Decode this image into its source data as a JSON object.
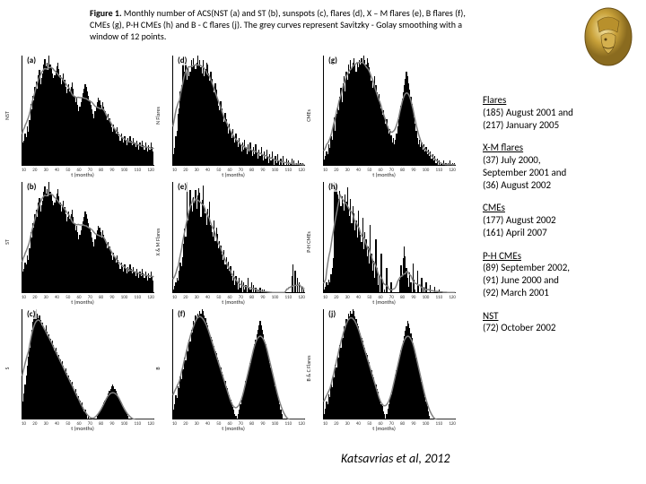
{
  "caption": {
    "prefix": "Figure 1.",
    "text": " Monthly number of ACS(NST (a) and ST (b), sunspots (c), flares (d), X – M flares (e), B flares (f), CMEs (g), P-H CMEs (h) and B - C flares (j). The grey curves represent Savitzky - Golay smoothing with a window of 12 points."
  },
  "citation": "Katsavrias et al, 2012",
  "chart_style": {
    "bar_color": "#000000",
    "smooth_color": "#808080",
    "smooth_width": 1.5,
    "background": "#ffffff",
    "axis_color": "#000000",
    "xlabel_default": "t (months)",
    "x_ticks": [
      "10",
      "20",
      "30",
      "40",
      "50",
      "60",
      "70",
      "80",
      "90",
      "100",
      "110",
      "120"
    ]
  },
  "panels": [
    {
      "label": "(a)",
      "ylabel": "NST",
      "values": [
        20,
        22,
        28,
        25,
        35,
        30,
        40,
        55,
        50,
        62,
        58,
        70,
        75,
        68,
        80,
        85,
        72,
        78,
        82,
        90,
        95,
        88,
        92,
        85,
        98,
        90,
        87,
        82,
        78,
        80,
        84,
        88,
        92,
        86,
        80,
        72,
        78,
        82,
        76,
        70,
        64,
        68,
        72,
        66,
        70,
        74,
        68,
        62,
        56,
        60,
        54,
        48,
        52,
        56,
        60,
        64,
        68,
        72,
        70,
        66,
        62,
        58,
        54,
        50,
        46,
        42,
        48,
        52,
        56,
        60,
        58,
        54,
        50,
        56,
        52,
        48,
        44,
        40,
        46,
        42,
        38,
        34,
        30,
        36,
        32,
        28,
        34,
        30,
        26,
        22,
        28,
        24,
        20,
        26,
        22,
        18,
        24,
        20,
        26,
        22,
        18,
        24,
        20,
        16,
        22,
        18,
        14,
        20,
        16,
        22,
        18,
        14,
        20,
        16,
        12,
        18,
        14,
        20,
        16,
        12
      ]
    },
    {
      "label": "(d)",
      "ylabel": "N   Flares",
      "values": [
        10,
        15,
        25,
        30,
        45,
        50,
        65,
        70,
        88,
        95,
        82,
        90,
        75,
        85,
        78,
        82,
        92,
        86,
        94,
        88,
        84,
        90,
        96,
        88,
        92,
        86,
        80,
        92,
        78,
        84,
        90,
        88,
        80,
        74,
        82,
        76,
        70,
        64,
        72,
        66,
        58,
        52,
        48,
        56,
        50,
        44,
        38,
        46,
        40,
        34,
        28,
        36,
        30,
        24,
        32,
        26,
        20,
        28,
        22,
        16,
        24,
        18,
        12,
        20,
        14,
        22,
        16,
        10,
        18,
        12,
        20,
        14,
        8,
        16,
        10,
        18,
        12,
        6,
        14,
        8,
        16,
        10,
        4,
        12,
        6,
        14,
        8,
        2,
        10,
        4,
        12,
        6,
        0,
        8,
        2,
        10,
        4,
        0,
        6,
        0,
        8,
        2,
        0,
        6,
        0,
        4,
        0,
        2,
        6,
        0,
        4,
        0,
        2,
        0,
        4,
        0,
        2,
        0,
        2,
        0
      ]
    },
    {
      "label": "(g)",
      "ylabel": "CMEs",
      "values": [
        5,
        8,
        12,
        10,
        18,
        15,
        25,
        22,
        35,
        42,
        30,
        45,
        52,
        48,
        60,
        68,
        55,
        72,
        78,
        65,
        82,
        75,
        88,
        80,
        92,
        85,
        90,
        94,
        88,
        82,
        90,
        86,
        92,
        88,
        94,
        90,
        96,
        92,
        88,
        94,
        90,
        86,
        80,
        74,
        68,
        72,
        78,
        70,
        64,
        58,
        62,
        56,
        50,
        44,
        48,
        42,
        36,
        40,
        34,
        28,
        32,
        26,
        20,
        24,
        18,
        22,
        28,
        34,
        40,
        46,
        52,
        58,
        64,
        70,
        76,
        82,
        78,
        72,
        66,
        60,
        54,
        48,
        42,
        36,
        30,
        24,
        18,
        22,
        16,
        20,
        14,
        18,
        12,
        16,
        10,
        14,
        8,
        12,
        6,
        10,
        4,
        8,
        2,
        6,
        0,
        4,
        0,
        2,
        0,
        4,
        0,
        2,
        0,
        2,
        0,
        4,
        0,
        2,
        0,
        2
      ]
    },
    {
      "label": "(b)",
      "ylabel": "ST",
      "values": [
        18,
        20,
        26,
        24,
        32,
        28,
        38,
        52,
        48,
        60,
        56,
        68,
        72,
        66,
        78,
        82,
        70,
        76,
        80,
        88,
        92,
        86,
        90,
        84,
        96,
        88,
        85,
        80,
        76,
        78,
        82,
        86,
        90,
        84,
        78,
        70,
        76,
        80,
        74,
        68,
        62,
        66,
        70,
        64,
        68,
        72,
        66,
        60,
        54,
        58,
        52,
        46,
        50,
        54,
        58,
        62,
        66,
        70,
        68,
        64,
        60,
        56,
        52,
        48,
        44,
        40,
        46,
        50,
        54,
        58,
        56,
        52,
        48,
        54,
        50,
        46,
        42,
        38,
        44,
        40,
        36,
        32,
        28,
        34,
        30,
        26,
        32,
        28,
        24,
        20,
        26,
        22,
        18,
        24,
        20,
        16,
        22,
        18,
        24,
        20,
        16,
        22,
        18,
        14,
        20,
        16,
        12,
        18,
        14,
        20,
        16,
        12,
        18,
        14,
        10,
        16,
        12,
        18,
        14,
        10
      ]
    },
    {
      "label": "(e)",
      "ylabel": "X & M Flares",
      "values": [
        2,
        5,
        8,
        12,
        10,
        18,
        25,
        22,
        30,
        42,
        55,
        48,
        95,
        62,
        68,
        88,
        75,
        70,
        82,
        78,
        88,
        72,
        84,
        90,
        86,
        65,
        80,
        92,
        74,
        68,
        58,
        72,
        64,
        78,
        58,
        52,
        48,
        62,
        44,
        56,
        50,
        38,
        44,
        40,
        32,
        28,
        36,
        24,
        30,
        20,
        26,
        18,
        22,
        14,
        10,
        18,
        6,
        14,
        8,
        2,
        12,
        4,
        10,
        0,
        8,
        2,
        6,
        0,
        12,
        4,
        2,
        8,
        0,
        6,
        0,
        4,
        0,
        2,
        0,
        4,
        0,
        2,
        0,
        2,
        0,
        0,
        0,
        0,
        0,
        0,
        0,
        0,
        0,
        0,
        0,
        0,
        0,
        0,
        0,
        0,
        0,
        0,
        0,
        0,
        0,
        0,
        0,
        0,
        14,
        24,
        0,
        18,
        0,
        12,
        0,
        8,
        0,
        4,
        0,
        2
      ]
    },
    {
      "label": "(h)",
      "ylabel": "P-H CMEs",
      "values": [
        2,
        4,
        8,
        6,
        10,
        8,
        15,
        20,
        28,
        92,
        88,
        90,
        82,
        78,
        85,
        72,
        80,
        74,
        68,
        82,
        76,
        88,
        70,
        64,
        78,
        58,
        72,
        66,
        52,
        60,
        46,
        68,
        54,
        48,
        42,
        62,
        36,
        50,
        44,
        30,
        38,
        24,
        56,
        32,
        18,
        26,
        12,
        44,
        20,
        6,
        14,
        0,
        32,
        8,
        0,
        2,
        0,
        20,
        0,
        0,
        0,
        8,
        0,
        0,
        0,
        0,
        0,
        0,
        0,
        10,
        22,
        14,
        28,
        38,
        30,
        20,
        12,
        4,
        16,
        8,
        0,
        24,
        10,
        2,
        0,
        18,
        6,
        0,
        0,
        12,
        0,
        4,
        0,
        8,
        0,
        0,
        0,
        6,
        0,
        0,
        0,
        4,
        0,
        0,
        0,
        2,
        0,
        0,
        0,
        0,
        0,
        0,
        0,
        0,
        0,
        0,
        0,
        0,
        0,
        0
      ]
    },
    {
      "label": "(c)",
      "ylabel": "S",
      "values": [
        15,
        22,
        30,
        38,
        46,
        54,
        62,
        70,
        78,
        85,
        90,
        94,
        96,
        92,
        88,
        90,
        86,
        82,
        84,
        80,
        78,
        82,
        76,
        72,
        74,
        70,
        66,
        68,
        64,
        60,
        62,
        58,
        54,
        56,
        52,
        48,
        50,
        46,
        42,
        44,
        40,
        36,
        38,
        34,
        30,
        32,
        28,
        24,
        26,
        22,
        18,
        20,
        16,
        12,
        14,
        10,
        6,
        8,
        4,
        0,
        2,
        0,
        0,
        0,
        0,
        0,
        0,
        0,
        2,
        4,
        6,
        8,
        10,
        12,
        14,
        16,
        18,
        20,
        22,
        24,
        26,
        28,
        30,
        28,
        26,
        24,
        22,
        20,
        18,
        16,
        14,
        12,
        10,
        8,
        6,
        4,
        2,
        0,
        0,
        0,
        0,
        0,
        0,
        0,
        0,
        0,
        0,
        0,
        0,
        0,
        0,
        0,
        0,
        0,
        0,
        0,
        0,
        0,
        0,
        0
      ]
    },
    {
      "label": "(f)",
      "ylabel": "B",
      "values": [
        8,
        12,
        20,
        18,
        28,
        26,
        36,
        34,
        44,
        42,
        52,
        50,
        60,
        58,
        68,
        66,
        76,
        74,
        84,
        82,
        88,
        86,
        90,
        88,
        92,
        90,
        94,
        92,
        88,
        86,
        82,
        80,
        76,
        74,
        70,
        68,
        64,
        62,
        58,
        56,
        52,
        50,
        46,
        44,
        40,
        38,
        34,
        32,
        28,
        26,
        22,
        20,
        16,
        14,
        10,
        8,
        4,
        2,
        0,
        4,
        8,
        12,
        16,
        20,
        24,
        28,
        32,
        36,
        40,
        44,
        48,
        52,
        56,
        60,
        64,
        68,
        72,
        76,
        80,
        84,
        80,
        76,
        72,
        68,
        64,
        60,
        56,
        52,
        48,
        44,
        40,
        36,
        32,
        28,
        24,
        20,
        16,
        12,
        8,
        4,
        0,
        0,
        0,
        0,
        0,
        0,
        0,
        0,
        0,
        0,
        0,
        0,
        0,
        0,
        0,
        0,
        0,
        0,
        0,
        0
      ]
    },
    {
      "label": "(j)",
      "ylabel": "B & C Flares",
      "values": [
        4,
        8,
        14,
        12,
        20,
        18,
        28,
        26,
        36,
        34,
        44,
        42,
        52,
        50,
        60,
        58,
        68,
        66,
        76,
        74,
        82,
        80,
        86,
        84,
        88,
        86,
        90,
        88,
        84,
        82,
        78,
        76,
        72,
        70,
        66,
        64,
        60,
        58,
        54,
        52,
        48,
        46,
        42,
        40,
        36,
        34,
        30,
        28,
        24,
        22,
        18,
        16,
        12,
        10,
        6,
        4,
        0,
        4,
        8,
        12,
        16,
        20,
        24,
        28,
        32,
        36,
        40,
        44,
        48,
        52,
        56,
        60,
        64,
        68,
        72,
        76,
        80,
        78,
        74,
        70,
        66,
        62,
        58,
        54,
        50,
        46,
        42,
        38,
        34,
        30,
        26,
        22,
        18,
        14,
        10,
        6,
        2,
        0,
        0,
        0,
        0,
        0,
        0,
        0,
        0,
        0,
        0,
        0,
        0,
        0,
        0,
        0,
        0,
        0,
        0,
        0,
        0,
        0,
        0,
        0
      ]
    }
  ],
  "side_groups": [
    {
      "title": "Flares",
      "lines": [
        "(185) August 2001 and",
        "(217) January 2005"
      ]
    },
    {
      "title": "X-M flares",
      "lines": [
        "(37) July 2000,",
        "September 2001 and",
        "(36) August 2002"
      ]
    },
    {
      "title": "CMEs",
      "lines": [
        "(177) August 2002",
        "(161) April 2007"
      ]
    },
    {
      "title": "P-H CMEs",
      "lines": [
        "(89) September 2002,",
        "(91) June 2000 and",
        "(92) March 2001"
      ]
    },
    {
      "title": "NST",
      "lines": [
        "(72) October 2002"
      ]
    }
  ]
}
